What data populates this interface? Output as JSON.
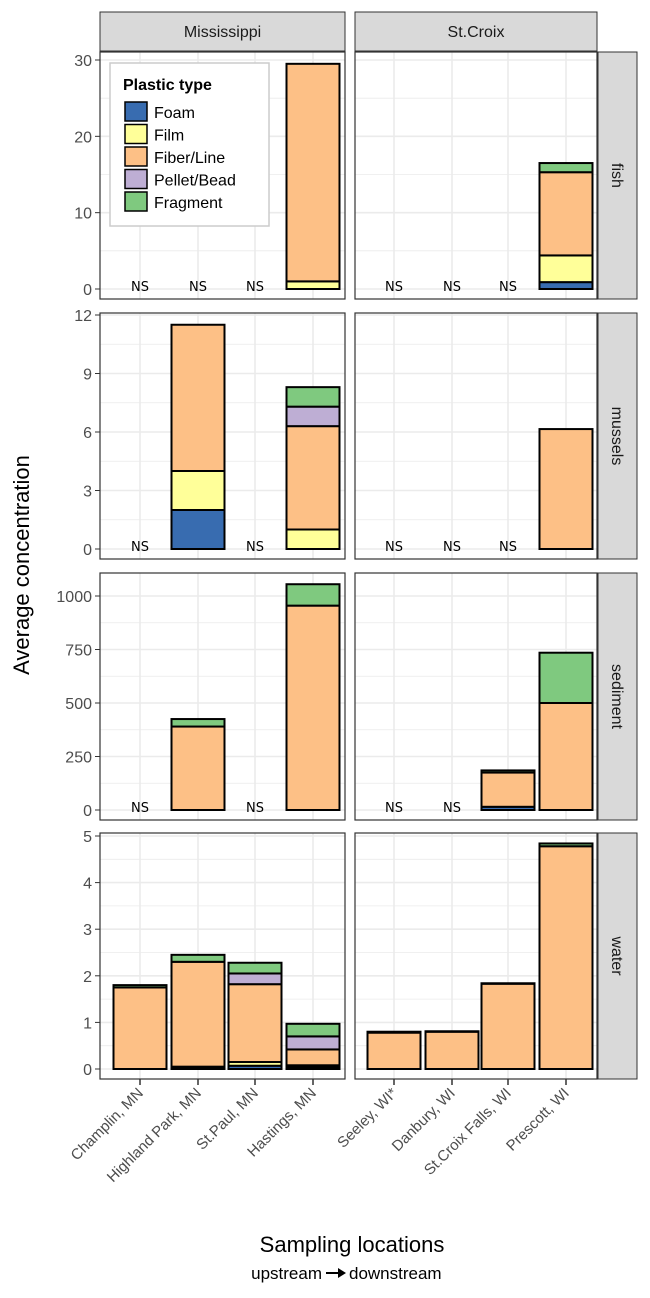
{
  "chart_data": {
    "type": "bar",
    "stacked": true,
    "ylabel": "Average concentration",
    "xlabel": "Sampling locations",
    "xsublabel": "upstream",
    "xsublabel2": "downstream",
    "legend": {
      "title": "Plastic type",
      "placement": "top-left (inside Mississippi fish panel)"
    },
    "na_label": "NS",
    "series": [
      {
        "name": "Foam",
        "color": "#386cb0"
      },
      {
        "name": "Film",
        "color": "#ffff99"
      },
      {
        "name": "Fiber/Line",
        "color": "#fdc086"
      },
      {
        "name": "Pellet/Bead",
        "color": "#beaed4"
      },
      {
        "name": "Fragment",
        "color": "#7fc97f"
      }
    ],
    "columns": [
      {
        "name": "Mississippi",
        "categories": [
          "Champlin, MN",
          "Highland Park, MN",
          "St.Paul, MN",
          "Hastings, MN"
        ]
      },
      {
        "name": "St.Croix",
        "categories": [
          "Seeley, WI*",
          "Danbury, WI",
          "St.Croix Falls, WI",
          "Prescott, WI"
        ]
      }
    ],
    "rows": [
      {
        "name": "fish",
        "ylim": [
          0,
          30
        ],
        "yticks": [
          0,
          10,
          20,
          30
        ],
        "values": [
          [
            null,
            null,
            null,
            [
              0,
              1,
              28.5,
              0,
              0
            ]
          ],
          [
            null,
            null,
            null,
            [
              0.9,
              3.5,
              10.9,
              0,
              1.2
            ]
          ]
        ]
      },
      {
        "name": "mussels",
        "ylim": [
          0,
          12
        ],
        "yticks": [
          0,
          3,
          6,
          9,
          12
        ],
        "values": [
          [
            null,
            [
              2,
              2,
              7.5,
              0,
              0
            ],
            null,
            [
              0,
              1,
              5.3,
              1,
              1
            ]
          ],
          [
            null,
            null,
            null,
            [
              0,
              0,
              6.15,
              0,
              0
            ]
          ]
        ]
      },
      {
        "name": "sediment",
        "ylim": [
          0,
          1000
        ],
        "yticks": [
          0,
          250,
          500,
          750,
          1000
        ],
        "values": [
          [
            null,
            [
              0,
              0,
              390,
              0,
              35
            ],
            null,
            [
              0,
              0,
              955,
              0,
              100
            ]
          ],
          [
            null,
            null,
            [
              15,
              0,
              160,
              0,
              10
            ],
            [
              0,
              0,
              500,
              0,
              235
            ]
          ]
        ]
      },
      {
        "name": "water",
        "ylim": [
          0,
          5
        ],
        "yticks": [
          0,
          1,
          2,
          3,
          4,
          5
        ],
        "values": [
          [
            [
              0,
              0,
              1.75,
              0,
              0.05
            ],
            [
              0.03,
              0.02,
              2.25,
              0,
              0.15
            ],
            [
              0.07,
              0.08,
              1.67,
              0.23,
              0.23
            ],
            [
              0.04,
              0.04,
              0.34,
              0.28,
              0.27
            ]
          ],
          [
            [
              0,
              0,
              0.78,
              0,
              0.02
            ],
            [
              0,
              0,
              0.8,
              0,
              0.01
            ],
            [
              0,
              0,
              1.83,
              0,
              0.01
            ],
            [
              0,
              0,
              4.78,
              0,
              0.06
            ]
          ]
        ]
      }
    ]
  }
}
